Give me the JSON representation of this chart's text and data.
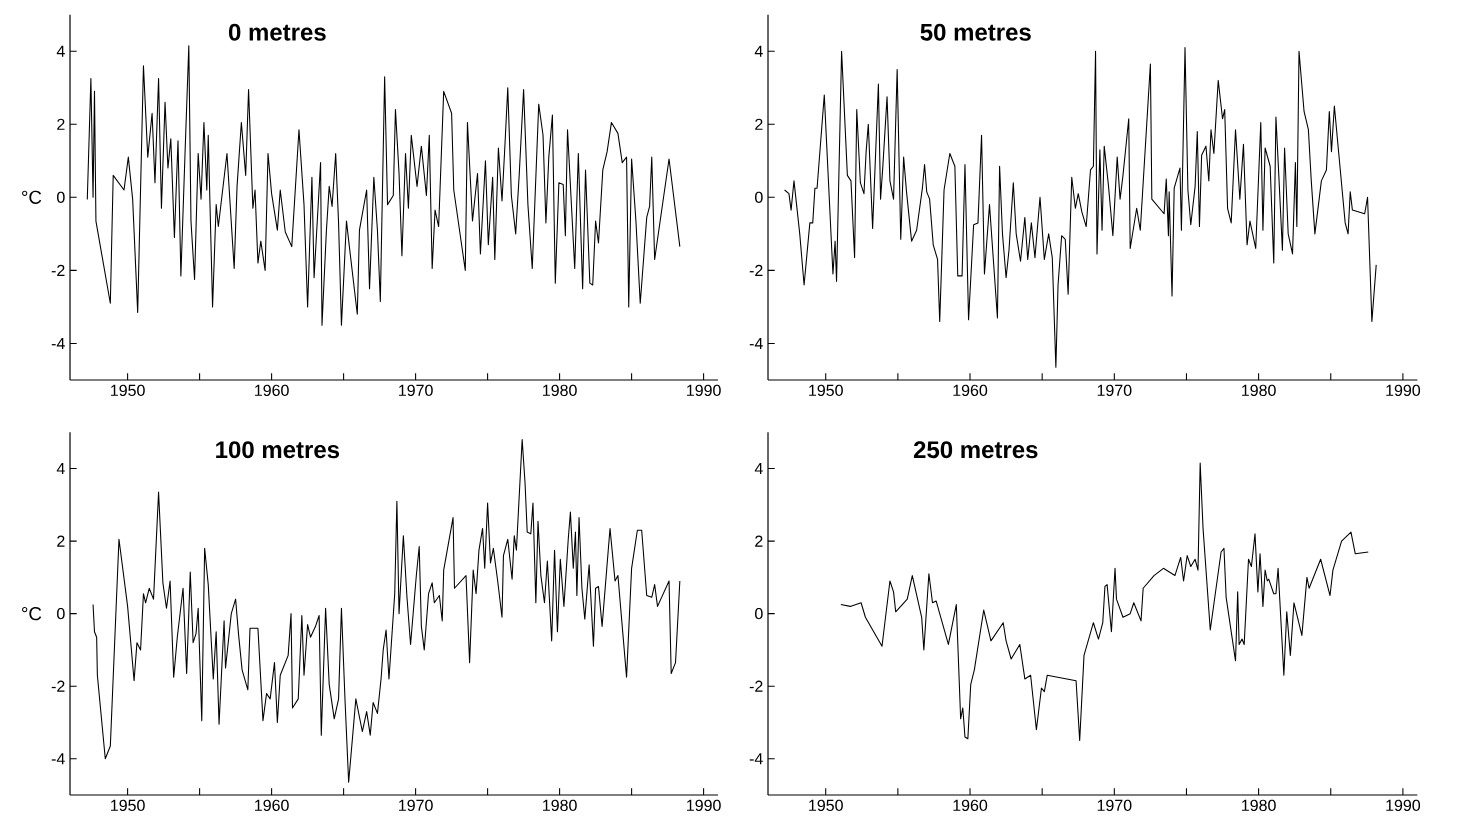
{
  "chart_data": [
    {
      "type": "line",
      "title": "0 metres",
      "ylabel": "°C",
      "color": "#000000",
      "xlim": [
        1946,
        1991
      ],
      "ylim": [
        -5,
        5
      ],
      "xticks": [
        1950,
        {
          "value": 1955,
          "label": null
        },
        1960,
        {
          "value": 1965,
          "label": null
        },
        1970,
        {
          "value": 1975,
          "label": null
        },
        1980,
        {
          "value": 1985,
          "label": null
        },
        1990
      ],
      "yticks": [
        -4,
        -2,
        0,
        2,
        4
      ],
      "x": [
        1947.2,
        1947.45,
        1947.6,
        1947.7,
        1947.8,
        1948.8,
        1949.0,
        1949.75,
        1950.05,
        1950.35,
        1950.7,
        1951.1,
        1951.4,
        1951.7,
        1951.9,
        1952.15,
        1952.35,
        1952.6,
        1952.8,
        1953.0,
        1953.25,
        1953.5,
        1953.7,
        1954.0,
        1954.25,
        1954.4,
        1954.65,
        1954.9,
        1955.1,
        1955.3,
        1955.5,
        1955.6,
        1955.9,
        1956.15,
        1956.3,
        1956.9,
        1957.4,
        1957.6,
        1957.9,
        1958.2,
        1958.4,
        1958.7,
        1958.85,
        1959.05,
        1959.25,
        1959.55,
        1959.75,
        1960.0,
        1960.4,
        1960.6,
        1960.95,
        1961.4,
        1961.9,
        1962.25,
        1962.5,
        1962.8,
        1962.95,
        1963.4,
        1963.5,
        1963.8,
        1964.0,
        1964.2,
        1964.45,
        1964.65,
        1964.85,
        1965.2,
        1965.4,
        1965.95,
        1966.1,
        1966.6,
        1966.8,
        1967.1,
        1967.35,
        1967.55,
        1967.85,
        1968.05,
        1968.45,
        1968.6,
        1968.85,
        1969.05,
        1969.3,
        1969.5,
        1969.7,
        1970.1,
        1970.4,
        1970.75,
        1970.95,
        1971.15,
        1971.35,
        1971.6,
        1971.95,
        1972.5,
        1972.65,
        1973.45,
        1973.6,
        1973.95,
        1974.3,
        1974.5,
        1974.85,
        1975.05,
        1975.35,
        1975.5,
        1975.75,
        1976.0,
        1976.2,
        1976.4,
        1976.65,
        1976.95,
        1977.2,
        1977.5,
        1977.8,
        1978.1,
        1978.55,
        1978.85,
        1979.05,
        1979.25,
        1979.5,
        1979.7,
        1979.95,
        1980.25,
        1980.4,
        1980.55,
        1981.05,
        1981.3,
        1981.6,
        1981.8,
        1982.1,
        1982.3,
        1982.5,
        1982.7,
        1983.0,
        1983.3,
        1983.6,
        1984.05,
        1984.35,
        1984.65,
        1984.8,
        1985.0,
        1985.3,
        1985.6,
        1986.05,
        1986.25,
        1986.4,
        1986.6,
        1987.6,
        1988.35
      ],
      "values": [
        -0.06,
        3.25,
        0,
        2.9,
        -0.65,
        -2.9,
        0.6,
        0.2,
        1.1,
        -0.05,
        -3.15,
        3.6,
        1.1,
        2.3,
        0.4,
        3.25,
        -0.3,
        2.6,
        0.8,
        1.6,
        -1.1,
        1.55,
        -2.15,
        1.35,
        4.15,
        -0.65,
        -2.25,
        1.2,
        -0.05,
        2.05,
        0.2,
        1.7,
        -3.0,
        -0.2,
        -0.8,
        1.2,
        -1.95,
        0.3,
        2.05,
        0.6,
        2.95,
        -0.3,
        0.2,
        -1.8,
        -1.2,
        -2.0,
        1.2,
        0.1,
        -0.9,
        0.2,
        -0.95,
        -1.35,
        1.85,
        -0.2,
        -3.0,
        0.55,
        -2.2,
        0.95,
        -3.5,
        -0.95,
        0.3,
        -0.25,
        1.2,
        -0.7,
        -3.5,
        -0.65,
        -1.35,
        -3.2,
        -0.9,
        0.2,
        -2.5,
        0.55,
        -0.9,
        -2.85,
        3.3,
        -0.2,
        0.05,
        2.4,
        0.65,
        -1.6,
        1.2,
        -0.3,
        1.7,
        0.3,
        1.4,
        0.05,
        1.7,
        -1.95,
        -0.35,
        -0.8,
        2.9,
        2.3,
        0.2,
        -2.0,
        2.05,
        -0.65,
        0.65,
        -1.55,
        1.0,
        -1.3,
        0.55,
        -1.7,
        1.35,
        -0.1,
        1.4,
        3.0,
        0.05,
        -1.0,
        0.65,
        2.95,
        -0.2,
        -1.95,
        2.55,
        1.7,
        -0.7,
        1.1,
        2.25,
        -2.35,
        0.4,
        0.35,
        -1.05,
        1.85,
        -1.95,
        1.2,
        -2.5,
        0.75,
        -2.35,
        -2.4,
        -0.65,
        -1.25,
        0.75,
        1.25,
        2.05,
        1.75,
        0.95,
        1.1,
        -3.0,
        1.05,
        -0.65,
        -2.9,
        -0.55,
        -0.25,
        1.1,
        -1.7,
        1.05,
        -1.35
      ]
    },
    {
      "type": "line",
      "title": "50 metres",
      "color": "#000000",
      "xlim": [
        1946,
        1991
      ],
      "ylim": [
        -5,
        5
      ],
      "xticks": [
        1950,
        {
          "value": 1955,
          "label": null
        },
        1960,
        {
          "value": 1965,
          "label": null
        },
        1970,
        {
          "value": 1975,
          "label": null
        },
        1980,
        {
          "value": 1985,
          "label": null
        },
        1990
      ],
      "yticks": [
        -4,
        -2,
        0,
        2,
        4
      ],
      "x": [
        1947.15,
        1947.45,
        1947.6,
        1947.8,
        1948.2,
        1948.5,
        1948.9,
        1949.1,
        1949.25,
        1949.4,
        1949.9,
        1950.5,
        1950.65,
        1950.75,
        1951.1,
        1951.5,
        1951.75,
        1952.0,
        1952.15,
        1952.4,
        1952.65,
        1952.8,
        1952.95,
        1953.25,
        1953.65,
        1953.8,
        1953.95,
        1954.25,
        1954.45,
        1954.7,
        1954.95,
        1955.2,
        1955.4,
        1955.6,
        1955.95,
        1956.3,
        1956.7,
        1956.85,
        1957.0,
        1957.2,
        1957.45,
        1957.75,
        1957.9,
        1958.2,
        1958.6,
        1958.95,
        1959.15,
        1959.45,
        1959.65,
        1959.9,
        1960.25,
        1960.55,
        1960.8,
        1961.0,
        1961.35,
        1961.9,
        1962.05,
        1962.25,
        1962.5,
        1962.7,
        1963.0,
        1963.2,
        1963.5,
        1963.8,
        1964.0,
        1964.25,
        1964.5,
        1964.85,
        1965.15,
        1965.45,
        1965.7,
        1965.95,
        1966.1,
        1966.35,
        1966.6,
        1966.8,
        1967.05,
        1967.3,
        1967.5,
        1967.75,
        1968.05,
        1968.35,
        1968.55,
        1968.7,
        1968.8,
        1969.0,
        1969.15,
        1969.3,
        1969.6,
        1969.9,
        1970.2,
        1970.4,
        1970.6,
        1971.0,
        1971.1,
        1971.55,
        1971.8,
        1972.5,
        1972.6,
        1973.45,
        1973.6,
        1973.75,
        1973.8,
        1974.0,
        1974.15,
        1974.55,
        1974.65,
        1974.9,
        1975.1,
        1975.3,
        1975.6,
        1975.75,
        1975.9,
        1976.05,
        1976.35,
        1976.55,
        1976.7,
        1976.9,
        1977.2,
        1977.5,
        1977.65,
        1977.85,
        1978.1,
        1978.4,
        1978.7,
        1978.95,
        1979.2,
        1979.4,
        1979.8,
        1980.15,
        1980.3,
        1980.45,
        1980.8,
        1981.05,
        1981.2,
        1981.4,
        1981.65,
        1981.8,
        1982.05,
        1982.35,
        1982.55,
        1982.65,
        1982.8,
        1983.15,
        1983.45,
        1983.65,
        1983.9,
        1984.35,
        1984.7,
        1984.9,
        1985.05,
        1985.25,
        1986.0,
        1986.2,
        1986.35,
        1986.5,
        1987.35,
        1987.55,
        1987.85,
        1988.15
      ],
      "values": [
        0.2,
        0.1,
        -0.35,
        0.45,
        -1.0,
        -2.4,
        -0.7,
        -0.7,
        0.25,
        0.25,
        2.8,
        -2.1,
        -1.2,
        -2.3,
        4.0,
        0.6,
        0.45,
        -1.65,
        2.4,
        0.4,
        0.1,
        1.25,
        2.0,
        -0.85,
        3.1,
        -0.05,
        0.8,
        2.75,
        0.45,
        -0.05,
        3.5,
        -1.15,
        1.1,
        0.15,
        -1.2,
        -0.9,
        0.25,
        0.9,
        0.15,
        -0.05,
        -1.3,
        -1.7,
        -3.4,
        0.2,
        1.2,
        0.85,
        -2.15,
        -2.15,
        0.9,
        -3.35,
        -0.75,
        -0.7,
        1.7,
        -2.1,
        -0.2,
        -3.3,
        0.85,
        -1.0,
        -2.2,
        -1.45,
        0.4,
        -1.0,
        -1.75,
        -0.55,
        -1.7,
        -0.7,
        -1.65,
        0.0,
        -1.7,
        -1.0,
        -1.65,
        -4.65,
        -2.4,
        -1.05,
        -1.15,
        -2.65,
        0.55,
        -0.3,
        0.1,
        -0.4,
        -0.8,
        0.75,
        0.85,
        4.0,
        -1.55,
        1.3,
        -0.9,
        1.4,
        0.3,
        -1.05,
        1.1,
        -0.05,
        0.6,
        2.15,
        -1.4,
        -0.3,
        -0.9,
        3.65,
        -0.05,
        -0.45,
        0.5,
        -1.05,
        0.15,
        -2.7,
        0.25,
        0.8,
        -0.9,
        4.1,
        0.2,
        -0.75,
        0.3,
        1.8,
        -0.8,
        1.15,
        1.4,
        0.45,
        1.85,
        1.2,
        3.2,
        2.15,
        2.4,
        -0.3,
        -0.7,
        1.85,
        -0.05,
        1.45,
        -1.3,
        -0.65,
        -1.4,
        2.05,
        -0.9,
        1.35,
        0.85,
        -1.8,
        2.2,
        0.6,
        -1.45,
        1.35,
        -1.0,
        -1.55,
        0.95,
        -0.8,
        4.0,
        2.35,
        1.85,
        0.45,
        -1.0,
        0.45,
        0.75,
        2.35,
        1.25,
        2.5,
        -0.7,
        -1.0,
        0.15,
        -0.35,
        -0.45,
        0.0,
        -3.4,
        -1.85
      ]
    },
    {
      "type": "line",
      "title": "100 metres",
      "ylabel": "°C",
      "color": "#000000",
      "xlim": [
        1946,
        1991
      ],
      "ylim": [
        -5,
        5
      ],
      "xticks": [
        1950,
        {
          "value": 1955,
          "label": null
        },
        1960,
        {
          "value": 1965,
          "label": null
        },
        1970,
        {
          "value": 1975,
          "label": null
        },
        1980,
        {
          "value": 1985,
          "label": null
        },
        1990
      ],
      "yticks": [
        -4,
        -2,
        0,
        2,
        4
      ],
      "x": [
        1947.6,
        1947.7,
        1947.85,
        1947.9,
        1948.45,
        1948.8,
        1949.4,
        1950.0,
        1950.45,
        1950.65,
        1950.9,
        1951.1,
        1951.25,
        1951.5,
        1951.8,
        1952.15,
        1952.45,
        1952.7,
        1952.95,
        1953.2,
        1953.45,
        1953.85,
        1954.1,
        1954.35,
        1954.55,
        1954.75,
        1954.9,
        1955.15,
        1955.35,
        1955.6,
        1955.95,
        1956.15,
        1956.35,
        1956.7,
        1956.8,
        1957.2,
        1957.5,
        1957.7,
        1957.95,
        1958.35,
        1958.5,
        1959.05,
        1959.4,
        1959.65,
        1959.9,
        1960.2,
        1960.4,
        1960.6,
        1961.15,
        1961.35,
        1961.45,
        1961.85,
        1962.1,
        1962.25,
        1962.5,
        1962.7,
        1963.05,
        1963.3,
        1963.45,
        1963.75,
        1964.0,
        1964.35,
        1964.65,
        1964.85,
        1965.1,
        1965.35,
        1965.85,
        1966.3,
        1966.6,
        1966.85,
        1967.05,
        1967.35,
        1967.6,
        1967.75,
        1967.95,
        1968.15,
        1968.55,
        1968.7,
        1968.85,
        1969.15,
        1969.4,
        1969.65,
        1970.05,
        1970.25,
        1970.4,
        1970.6,
        1970.9,
        1971.15,
        1971.3,
        1971.65,
        1971.85,
        1971.95,
        1972.6,
        1972.7,
        1973.5,
        1973.75,
        1974.0,
        1974.2,
        1974.4,
        1974.65,
        1974.8,
        1975.0,
        1975.2,
        1975.4,
        1975.7,
        1976.0,
        1976.1,
        1976.4,
        1976.7,
        1976.85,
        1977.0,
        1977.4,
        1977.6,
        1977.75,
        1978.0,
        1978.15,
        1978.35,
        1978.5,
        1978.7,
        1978.95,
        1979.15,
        1979.45,
        1979.65,
        1979.85,
        1980.05,
        1980.3,
        1980.6,
        1980.75,
        1980.95,
        1981.1,
        1981.2,
        1981.35,
        1981.55,
        1981.75,
        1982.05,
        1982.35,
        1982.5,
        1982.7,
        1982.95,
        1983.5,
        1983.85,
        1984.05,
        1984.65,
        1985.0,
        1985.4,
        1985.7,
        1986.05,
        1986.4,
        1986.6,
        1986.8,
        1987.6,
        1987.75,
        1988.05,
        1988.35
      ],
      "values": [
        0.25,
        -0.5,
        -0.65,
        -1.7,
        -4.0,
        -3.65,
        2.05,
        0.2,
        -1.85,
        -0.8,
        -1.0,
        0.55,
        0.3,
        0.7,
        0.4,
        3.35,
        0.85,
        0.15,
        0.9,
        -1.75,
        -0.65,
        0.7,
        -1.65,
        1.15,
        -0.8,
        -0.55,
        0.15,
        -2.95,
        1.8,
        0.8,
        -1.8,
        -0.5,
        -3.05,
        -0.2,
        -1.5,
        0.0,
        0.4,
        -0.55,
        -1.55,
        -2.1,
        -0.4,
        -0.4,
        -2.95,
        -2.2,
        -2.35,
        -1.35,
        -3.0,
        -1.7,
        -1.15,
        0.0,
        -2.6,
        -2.35,
        -0.05,
        -1.7,
        -0.3,
        -0.65,
        -0.35,
        -0.05,
        -3.35,
        0.15,
        -1.95,
        -2.9,
        -2.35,
        0.15,
        -2.4,
        -4.65,
        -2.35,
        -3.25,
        -2.7,
        -3.35,
        -2.45,
        -2.75,
        -1.8,
        -1.0,
        -0.45,
        -1.8,
        0.55,
        3.1,
        0.0,
        2.15,
        0.45,
        -0.85,
        1.05,
        1.85,
        -0.35,
        -1.0,
        0.55,
        0.85,
        0.3,
        0.5,
        -0.2,
        1.2,
        2.65,
        0.7,
        1.05,
        -1.35,
        1.2,
        0.55,
        1.75,
        2.35,
        1.25,
        3.05,
        1.4,
        1.8,
        0.9,
        -0.1,
        1.6,
        2.05,
        0.95,
        2.15,
        1.75,
        4.8,
        3.6,
        2.25,
        2.2,
        3.05,
        0.3,
        2.55,
        1.05,
        0.3,
        1.45,
        -0.75,
        1.75,
        -0.5,
        1.5,
        0.2,
        2.05,
        2.8,
        1.25,
        2.25,
        0.5,
        2.65,
        0.7,
        -0.15,
        1.35,
        -0.9,
        0.7,
        0.75,
        -0.35,
        2.35,
        0.9,
        1.05,
        -1.75,
        1.25,
        2.3,
        2.3,
        0.5,
        0.45,
        0.8,
        0.2,
        0.9,
        -1.65,
        -1.35,
        0.9
      ]
    },
    {
      "type": "line",
      "title": "250 metres",
      "color": "#000000",
      "xlim": [
        1946,
        1991
      ],
      "ylim": [
        -5,
        5
      ],
      "xticks": [
        1950,
        {
          "value": 1955,
          "label": null
        },
        1960,
        {
          "value": 1965,
          "label": null
        },
        1970,
        {
          "value": 1975,
          "label": null
        },
        1980,
        {
          "value": 1985,
          "label": null
        },
        1990
      ],
      "yticks": [
        -4,
        -2,
        0,
        2,
        4
      ],
      "x": [
        1951.05,
        1951.7,
        1952.45,
        1952.75,
        1953.9,
        1954.45,
        1954.7,
        1954.85,
        1955.65,
        1956.0,
        1956.65,
        1956.8,
        1957.15,
        1957.4,
        1957.65,
        1958.5,
        1959.05,
        1959.35,
        1959.5,
        1959.65,
        1959.85,
        1960.05,
        1960.3,
        1960.95,
        1961.45,
        1962.3,
        1962.5,
        1962.85,
        1963.45,
        1963.8,
        1964.2,
        1964.6,
        1964.95,
        1965.15,
        1965.35,
        1967.35,
        1967.6,
        1967.9,
        1968.55,
        1968.9,
        1969.2,
        1969.35,
        1969.5,
        1969.8,
        1970.05,
        1970.15,
        1970.6,
        1971.1,
        1971.35,
        1971.85,
        1972.0,
        1972.75,
        1973.4,
        1974.2,
        1974.6,
        1974.8,
        1975.05,
        1975.3,
        1975.6,
        1975.8,
        1975.95,
        1976.15,
        1976.65,
        1977.4,
        1977.6,
        1977.75,
        1978.4,
        1978.55,
        1978.65,
        1978.85,
        1979.0,
        1979.3,
        1979.5,
        1979.75,
        1979.95,
        1980.1,
        1980.3,
        1980.45,
        1980.6,
        1980.7,
        1981.05,
        1981.2,
        1981.35,
        1981.75,
        1981.95,
        1982.2,
        1982.45,
        1983.0,
        1983.35,
        1983.5,
        1984.3,
        1984.95,
        1985.15,
        1985.75,
        1986.4,
        1986.7,
        1987.6
      ],
      "values": [
        0.25,
        0.2,
        0.3,
        -0.1,
        -0.9,
        0.9,
        0.6,
        0.05,
        0.4,
        1.05,
        -0.1,
        -1.0,
        1.1,
        0.3,
        0.35,
        -0.85,
        0.25,
        -2.9,
        -2.6,
        -3.4,
        -3.45,
        -1.95,
        -1.55,
        0.1,
        -0.75,
        -0.25,
        -0.75,
        -1.25,
        -0.85,
        -1.8,
        -1.7,
        -3.2,
        -2.05,
        -2.15,
        -1.7,
        -1.85,
        -3.5,
        -1.15,
        -0.25,
        -0.7,
        -0.25,
        0.75,
        0.8,
        -0.5,
        1.25,
        0.4,
        -0.1,
        0.0,
        0.3,
        -0.2,
        0.7,
        1.05,
        1.25,
        1.05,
        1.55,
        0.9,
        1.6,
        1.3,
        1.5,
        1.2,
        4.15,
        2.35,
        -0.45,
        1.7,
        1.8,
        0.45,
        -1.3,
        0.6,
        -0.85,
        -0.7,
        -0.85,
        1.5,
        1.3,
        2.2,
        0.6,
        1.65,
        0.2,
        1.2,
        0.9,
        0.95,
        0.55,
        0.55,
        1.25,
        -1.7,
        0.05,
        -1.15,
        0.3,
        -0.6,
        1.0,
        0.7,
        1.5,
        0.5,
        1.2,
        2.0,
        2.25,
        1.65,
        1.7
      ]
    }
  ]
}
